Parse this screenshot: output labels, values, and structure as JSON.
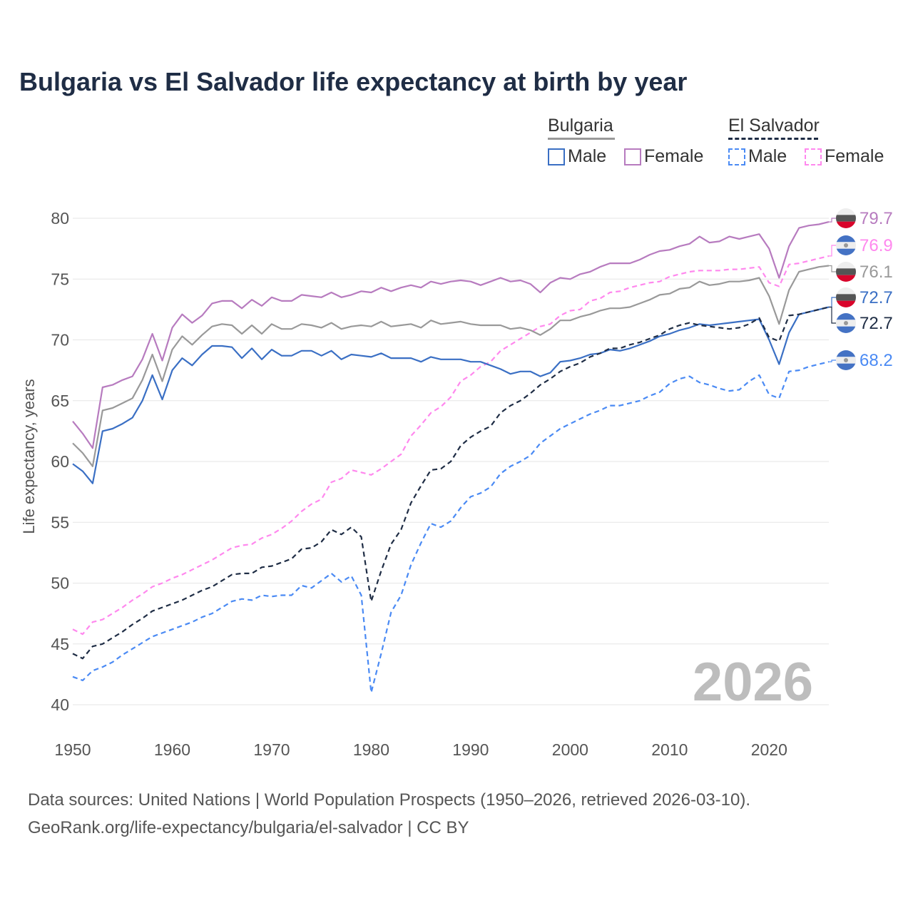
{
  "title": "Bulgaria vs El Salvador life expectancy at birth by year",
  "legend": {
    "groups": [
      {
        "name": "Bulgaria",
        "items": [
          "Male",
          "Female"
        ]
      },
      {
        "name": "El Salvador",
        "items": [
          "Male",
          "Female"
        ]
      }
    ]
  },
  "watermark_year": "2026",
  "footer": {
    "line1": "Data sources: United Nations | World Population Prospects (1950–2026, retrieved 2026-03-10).",
    "line2": "GeoRank.org/life-expectancy/bulgaria/el-salvador | CC BY"
  },
  "chart_data": {
    "type": "line",
    "title": "Bulgaria vs El Salvador life expectancy at birth by year",
    "xlabel": "",
    "ylabel": "Life expectancy, years",
    "xlim": [
      1950,
      2026
    ],
    "ylim": [
      40,
      80
    ],
    "xticks": [
      1950,
      1960,
      1970,
      1980,
      1990,
      2000,
      2010,
      2020
    ],
    "yticks": [
      40,
      45,
      50,
      55,
      60,
      65,
      70,
      75,
      80
    ],
    "grid": true,
    "legend_position": "top-right",
    "x_start": 1950,
    "series": [
      {
        "name": "Bulgaria Female",
        "country": "Bulgaria",
        "sex": "Female",
        "color": "#b77bbf",
        "dash": false,
        "end_label": "79.7",
        "values": [
          63.3,
          62.3,
          61.1,
          66.1,
          66.3,
          66.7,
          67.0,
          68.4,
          70.5,
          68.3,
          71.0,
          72.1,
          71.4,
          72.0,
          73.0,
          73.2,
          73.2,
          72.6,
          73.3,
          72.8,
          73.5,
          73.2,
          73.2,
          73.7,
          73.6,
          73.5,
          73.9,
          73.5,
          73.7,
          74.0,
          73.9,
          74.3,
          74.0,
          74.3,
          74.5,
          74.3,
          74.8,
          74.6,
          74.8,
          74.9,
          74.8,
          74.5,
          74.8,
          75.1,
          74.8,
          74.9,
          74.6,
          73.9,
          74.7,
          75.1,
          75.0,
          75.4,
          75.6,
          76.0,
          76.3,
          76.3,
          76.3,
          76.6,
          77.0,
          77.3,
          77.4,
          77.7,
          77.9,
          78.5,
          78.0,
          78.1,
          78.5,
          78.3,
          78.5,
          78.7,
          77.5,
          75.1,
          77.7,
          79.2,
          79.4,
          79.5,
          79.7
        ]
      },
      {
        "name": "El Salvador Female",
        "country": "El Salvador",
        "sex": "Female",
        "color": "#ff88ee",
        "dash": true,
        "end_label": "76.9",
        "values": [
          46.2,
          45.8,
          46.8,
          47.0,
          47.5,
          48.0,
          48.6,
          49.1,
          49.7,
          50.0,
          50.4,
          50.7,
          51.1,
          51.5,
          51.9,
          52.4,
          52.9,
          53.1,
          53.2,
          53.7,
          54.0,
          54.5,
          55.1,
          55.9,
          56.5,
          56.9,
          58.3,
          58.6,
          59.3,
          59.1,
          58.9,
          59.4,
          60.0,
          60.6,
          62.1,
          63.0,
          64.0,
          64.5,
          65.3,
          66.6,
          67.1,
          67.8,
          68.2,
          69.1,
          69.6,
          70.1,
          70.6,
          71.1,
          71.3,
          72.0,
          72.4,
          72.5,
          73.2,
          73.4,
          73.9,
          74.0,
          74.3,
          74.5,
          74.7,
          74.8,
          75.2,
          75.4,
          75.6,
          75.7,
          75.7,
          75.7,
          75.8,
          75.8,
          75.9,
          76.0,
          74.7,
          74.4,
          76.2,
          76.3,
          76.5,
          76.7,
          76.9
        ]
      },
      {
        "name": "Bulgaria",
        "country": "Bulgaria",
        "sex": "Total",
        "color": "#999999",
        "dash": false,
        "end_label": "76.1",
        "values": [
          61.5,
          60.7,
          59.6,
          64.2,
          64.4,
          64.8,
          65.2,
          66.7,
          68.8,
          66.6,
          69.2,
          70.3,
          69.6,
          70.4,
          71.1,
          71.3,
          71.2,
          70.5,
          71.2,
          70.5,
          71.3,
          70.9,
          70.9,
          71.3,
          71.2,
          71.0,
          71.4,
          70.9,
          71.1,
          71.2,
          71.1,
          71.5,
          71.1,
          71.2,
          71.3,
          71.0,
          71.6,
          71.3,
          71.4,
          71.5,
          71.3,
          71.2,
          71.2,
          71.2,
          70.9,
          71.0,
          70.8,
          70.4,
          70.9,
          71.6,
          71.6,
          71.9,
          72.1,
          72.4,
          72.6,
          72.6,
          72.7,
          73.0,
          73.3,
          73.7,
          73.8,
          74.2,
          74.3,
          74.8,
          74.5,
          74.6,
          74.8,
          74.8,
          74.9,
          75.1,
          73.6,
          71.3,
          74.1,
          75.6,
          75.8,
          76.0,
          76.1
        ]
      },
      {
        "name": "Bulgaria Male",
        "country": "Bulgaria",
        "sex": "Male",
        "color": "#3a6fc4",
        "dash": false,
        "end_label": "72.7",
        "values": [
          59.8,
          59.2,
          58.2,
          62.5,
          62.7,
          63.1,
          63.6,
          65.0,
          67.1,
          65.1,
          67.5,
          68.5,
          67.9,
          68.8,
          69.5,
          69.5,
          69.4,
          68.5,
          69.3,
          68.4,
          69.2,
          68.7,
          68.7,
          69.1,
          69.1,
          68.7,
          69.1,
          68.4,
          68.8,
          68.7,
          68.6,
          68.9,
          68.5,
          68.5,
          68.5,
          68.2,
          68.6,
          68.4,
          68.4,
          68.4,
          68.2,
          68.2,
          67.9,
          67.6,
          67.2,
          67.4,
          67.4,
          67.0,
          67.3,
          68.2,
          68.3,
          68.5,
          68.8,
          68.9,
          69.2,
          69.1,
          69.3,
          69.6,
          69.9,
          70.3,
          70.5,
          70.8,
          71.0,
          71.3,
          71.2,
          71.3,
          71.4,
          71.5,
          71.6,
          71.7,
          70.0,
          68.0,
          70.6,
          72.1,
          72.3,
          72.5,
          72.7
        ]
      },
      {
        "name": "El Salvador",
        "country": "El Salvador",
        "sex": "Total",
        "color": "#1f2d45",
        "dash": true,
        "end_label": "72.7",
        "values": [
          44.2,
          43.8,
          44.8,
          45.0,
          45.5,
          46.0,
          46.6,
          47.1,
          47.7,
          48.0,
          48.3,
          48.6,
          49.0,
          49.4,
          49.7,
          50.2,
          50.7,
          50.8,
          50.8,
          51.3,
          51.4,
          51.7,
          52.0,
          52.8,
          52.9,
          53.4,
          54.4,
          54.0,
          54.6,
          53.8,
          48.5,
          51.0,
          53.2,
          54.4,
          56.6,
          58.0,
          59.3,
          59.4,
          60.0,
          61.3,
          62.0,
          62.5,
          62.9,
          64.0,
          64.6,
          65.0,
          65.6,
          66.3,
          66.8,
          67.4,
          67.8,
          68.1,
          68.6,
          68.9,
          69.3,
          69.3,
          69.6,
          69.8,
          70.1,
          70.4,
          70.9,
          71.2,
          71.4,
          71.2,
          71.1,
          71.0,
          70.9,
          71.0,
          71.3,
          71.8,
          70.2,
          69.9,
          72.0,
          72.1,
          72.3,
          72.5,
          72.7
        ]
      },
      {
        "name": "El Salvador Male",
        "country": "El Salvador",
        "sex": "Male",
        "color": "#4a8af4",
        "dash": true,
        "end_label": "68.2",
        "values": [
          42.3,
          42.0,
          42.8,
          43.1,
          43.5,
          44.1,
          44.6,
          45.1,
          45.6,
          45.9,
          46.2,
          46.5,
          46.8,
          47.2,
          47.5,
          48.0,
          48.5,
          48.7,
          48.6,
          49.0,
          48.9,
          49.0,
          49.0,
          49.8,
          49.6,
          50.2,
          50.8,
          50.1,
          50.6,
          49.0,
          41.0,
          44.2,
          47.6,
          49.0,
          51.5,
          53.3,
          54.9,
          54.6,
          55.1,
          56.2,
          57.1,
          57.4,
          57.9,
          59.0,
          59.6,
          60.0,
          60.5,
          61.5,
          62.1,
          62.7,
          63.1,
          63.5,
          63.9,
          64.2,
          64.6,
          64.6,
          64.8,
          65.0,
          65.4,
          65.7,
          66.4,
          66.8,
          67.0,
          66.5,
          66.3,
          66.0,
          65.8,
          65.9,
          66.6,
          67.1,
          65.5,
          65.2,
          67.4,
          67.5,
          67.8,
          68.0,
          68.2
        ]
      }
    ]
  }
}
